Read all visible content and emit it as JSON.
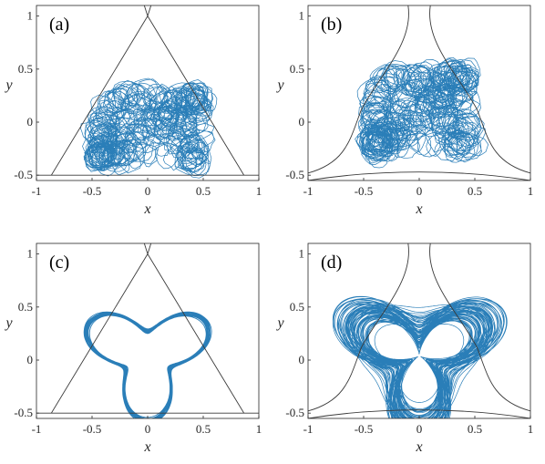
{
  "figure": {
    "colors": {
      "trajectory": "#1f77b4",
      "boundary": "#3a3a3a",
      "axes": "#262626"
    }
  },
  "chart_data": [
    {
      "type": "line",
      "panel_label": "(a)",
      "xlabel": "x",
      "ylabel": "y",
      "xlim": [
        -1,
        1
      ],
      "ylim": [
        -0.55,
        1.1
      ],
      "xticks": [
        -1,
        -0.5,
        0,
        0.5,
        1
      ],
      "xtick_labels": [
        "-1",
        "-0.5",
        "0",
        "0.5",
        "1"
      ],
      "yticks": [
        -0.5,
        0,
        0.5,
        1
      ],
      "ytick_labels": [
        "-0.5",
        "0",
        "0.5",
        "1"
      ],
      "grid": false,
      "description_series": "chaotic trajectory filling triangular region",
      "trajectory": {
        "kind": "chaotic",
        "center": [
          0,
          -0.05
        ],
        "rx": 0.45,
        "ry": 0.3,
        "loop": 0.11,
        "turns": 240,
        "seed": 7
      },
      "boundary": {
        "kind": "triangle",
        "vertices": [
          [
            0,
            1
          ],
          [
            -0.866,
            -0.5
          ],
          [
            0.866,
            -0.5
          ]
        ]
      }
    },
    {
      "type": "line",
      "panel_label": "(b)",
      "xlabel": "x",
      "ylabel": "y",
      "xlim": [
        -1,
        1
      ],
      "ylim": [
        -0.55,
        1.1
      ],
      "xticks": [
        -1,
        -0.5,
        0,
        0.5,
        1
      ],
      "xtick_labels": [
        "-1",
        "-0.5",
        "0",
        "0.5",
        "1"
      ],
      "yticks": [
        -0.5,
        0,
        0.5,
        1
      ],
      "ytick_labels": [
        "-0.5",
        "0",
        "0.5",
        "1"
      ],
      "grid": false,
      "trajectory": {
        "kind": "chaotic",
        "center": [
          0,
          0.1
        ],
        "rx": 0.4,
        "ry": 0.33,
        "loop": 0.12,
        "turns": 240,
        "seed": 11
      },
      "boundary": {
        "kind": "open"
      }
    },
    {
      "type": "line",
      "panel_label": "(c)",
      "xlabel": "x",
      "ylabel": "y",
      "xlim": [
        -1,
        1
      ],
      "ylim": [
        -0.55,
        1.1
      ],
      "xticks": [
        -1,
        -0.5,
        0,
        0.5,
        1
      ],
      "xtick_labels": [
        "-1",
        "-0.5",
        "0",
        "0.5",
        "1"
      ],
      "yticks": [
        -0.5,
        0,
        0.5,
        1
      ],
      "ytick_labels": [
        "-0.5",
        "0",
        "0.5",
        "1"
      ],
      "grid": false,
      "trajectory": {
        "kind": "trefoil",
        "a": 0.31,
        "b": 0.14,
        "strands": 16,
        "spread": 0.012
      },
      "boundary": {
        "kind": "triangle",
        "vertices": [
          [
            0,
            1
          ],
          [
            -0.866,
            -0.5
          ],
          [
            0.866,
            -0.5
          ]
        ]
      }
    },
    {
      "type": "line",
      "panel_label": "(d)",
      "xlabel": "x",
      "ylabel": "y",
      "xlim": [
        -1,
        1
      ],
      "ylim": [
        -0.55,
        1.1
      ],
      "xticks": [
        -1,
        -0.5,
        0,
        0.5,
        1
      ],
      "xtick_labels": [
        "-1",
        "-0.5",
        "0",
        "0.5",
        "1"
      ],
      "yticks": [
        -0.5,
        0,
        0.5,
        1
      ],
      "ytick_labels": [
        "-0.5",
        "0",
        "0.5",
        "1"
      ],
      "grid": false,
      "trajectory": {
        "kind": "dense-trefoil",
        "a": 0.33,
        "b": 0.16,
        "strands": 70,
        "spread": 0.09,
        "seed": 3
      },
      "boundary": {
        "kind": "open"
      }
    }
  ]
}
